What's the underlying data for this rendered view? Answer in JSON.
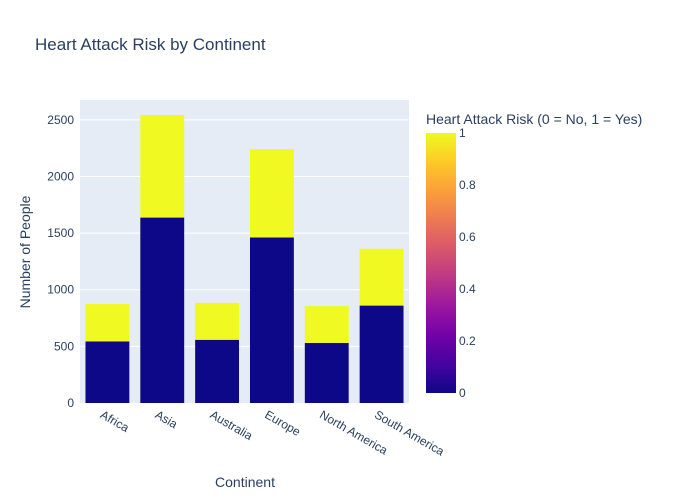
{
  "chart_data": {
    "type": "bar",
    "barmode": "stack",
    "title": "Heart Attack Risk by Continent",
    "xlabel": "Continent",
    "ylabel": "Number of People",
    "categories": [
      "Africa",
      "Asia",
      "Australia",
      "Europe",
      "North America",
      "South America"
    ],
    "series": [
      {
        "risk": 0,
        "values": [
          543,
          1637,
          558,
          1461,
          530,
          860
        ],
        "color": "#0d0887"
      },
      {
        "risk": 1,
        "values": [
          330,
          906,
          326,
          780,
          325,
          502
        ],
        "color": "#f0f921"
      }
    ],
    "ylim": [
      0,
      2675
    ],
    "yticks": [
      0,
      500,
      1000,
      1500,
      2000,
      2500
    ],
    "plot_background": "#e5ecf6",
    "grid": true,
    "colorbar": {
      "title": "Heart Attack Risk (0 = No, 1 = Yes)",
      "range": [
        0,
        1
      ],
      "ticks": [
        "0",
        "0.2",
        "0.4",
        "0.6",
        "0.8",
        "1"
      ],
      "colorscale": [
        "#0d0887",
        "#46039f",
        "#7201a8",
        "#9c179e",
        "#bd3786",
        "#d8576b",
        "#ed7953",
        "#fb9f3a",
        "#fdca26",
        "#f0f921"
      ]
    }
  }
}
